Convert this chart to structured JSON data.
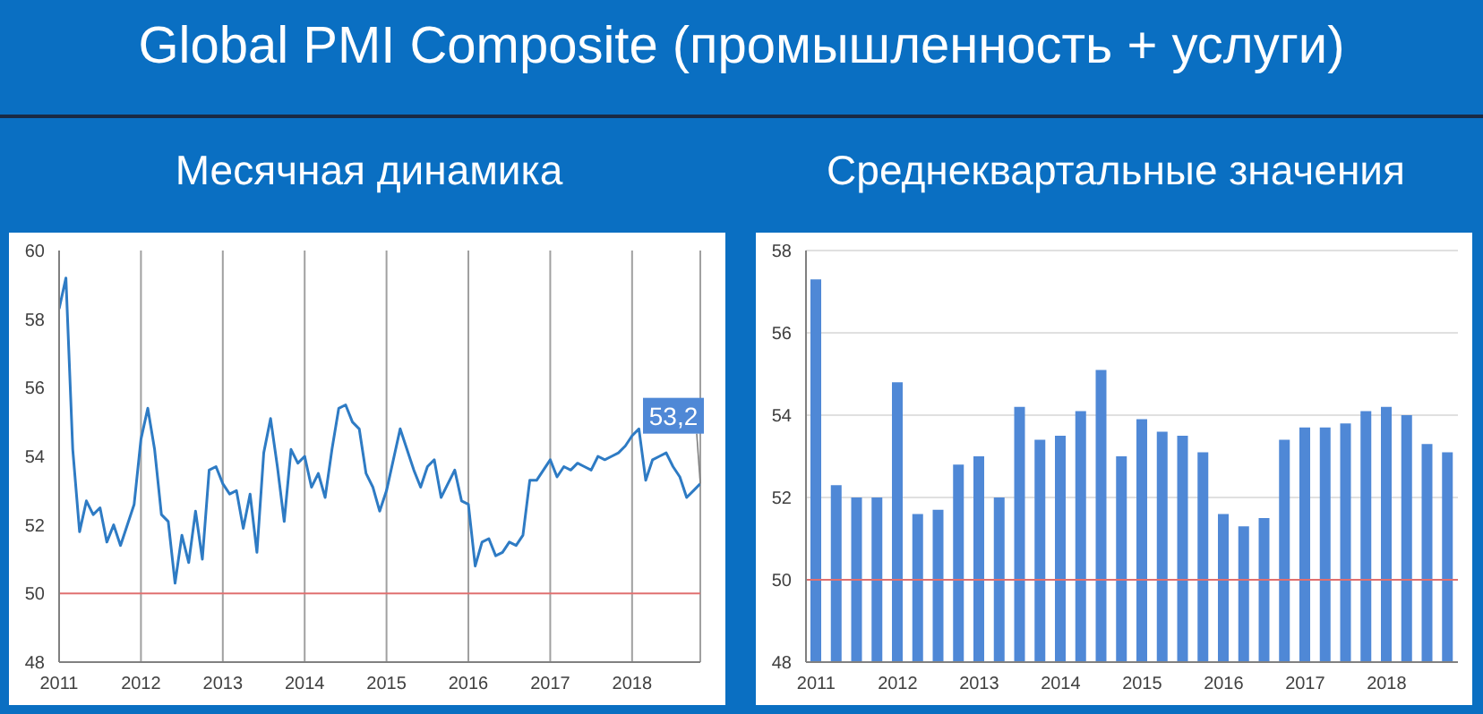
{
  "chart_data": [
    {
      "type": "line",
      "title": "Global PMI Composite (промышленность + услуги)",
      "subtitle": "Месячная динамика",
      "x": [
        "2011-01",
        "2011-02",
        "2011-03",
        "2011-04",
        "2011-05",
        "2011-06",
        "2011-07",
        "2011-08",
        "2011-09",
        "2011-10",
        "2011-11",
        "2011-12",
        "2012-01",
        "2012-02",
        "2012-03",
        "2012-04",
        "2012-05",
        "2012-06",
        "2012-07",
        "2012-08",
        "2012-09",
        "2012-10",
        "2012-11",
        "2012-12",
        "2013-01",
        "2013-02",
        "2013-03",
        "2013-04",
        "2013-05",
        "2013-06",
        "2013-07",
        "2013-08",
        "2013-09",
        "2013-10",
        "2013-11",
        "2013-12",
        "2014-01",
        "2014-02",
        "2014-03",
        "2014-04",
        "2014-05",
        "2014-06",
        "2014-07",
        "2014-08",
        "2014-09",
        "2014-10",
        "2014-11",
        "2014-12",
        "2015-01",
        "2015-02",
        "2015-03",
        "2015-04",
        "2015-05",
        "2015-06",
        "2015-07",
        "2015-08",
        "2015-09",
        "2015-10",
        "2015-11",
        "2015-12",
        "2016-01",
        "2016-02",
        "2016-03",
        "2016-04",
        "2016-05",
        "2016-06",
        "2016-07",
        "2016-08",
        "2016-09",
        "2016-10",
        "2016-11",
        "2016-12",
        "2017-01",
        "2017-02",
        "2017-03",
        "2017-04",
        "2017-05",
        "2017-06",
        "2017-07",
        "2017-08",
        "2017-09",
        "2017-10",
        "2017-11",
        "2017-12",
        "2018-01",
        "2018-02",
        "2018-03",
        "2018-04",
        "2018-05",
        "2018-06",
        "2018-07",
        "2018-08",
        "2018-09",
        "2018-10",
        "2018-11"
      ],
      "series": [
        {
          "color": "#2e7bc4",
          "values": [
            58.3,
            59.2,
            54.2,
            51.8,
            52.7,
            52.3,
            52.5,
            51.5,
            52.0,
            51.4,
            52.0,
            52.6,
            54.5,
            55.4,
            54.2,
            52.3,
            52.1,
            50.3,
            51.7,
            50.9,
            52.4,
            51.0,
            53.6,
            53.7,
            53.2,
            52.9,
            53.0,
            51.9,
            52.9,
            51.2,
            54.1,
            55.1,
            53.7,
            52.1,
            54.2,
            53.8,
            54.0,
            53.1,
            53.5,
            52.8,
            54.2,
            55.4,
            55.5,
            55.0,
            54.8,
            53.5,
            53.1,
            52.4,
            53.0,
            53.9,
            54.8,
            54.2,
            53.6,
            53.1,
            53.7,
            53.9,
            52.8,
            53.2,
            53.6,
            52.7,
            52.6,
            50.8,
            51.5,
            51.6,
            51.1,
            51.2,
            51.5,
            51.4,
            51.7,
            53.3,
            53.3,
            53.6,
            53.9,
            53.4,
            53.7,
            53.6,
            53.8,
            53.7,
            53.6,
            54.0,
            53.9,
            54.0,
            54.1,
            54.3,
            54.6,
            54.8,
            53.3,
            53.9,
            54.0,
            54.1,
            53.7,
            53.4,
            52.8,
            53.0,
            53.2
          ]
        }
      ],
      "xlim": [
        "2011-01",
        "2018-11"
      ],
      "xticks": [
        {
          "value": "2011",
          "label": "2011"
        },
        {
          "value": "2012",
          "label": "2012"
        },
        {
          "value": "2013",
          "label": "2013"
        },
        {
          "value": "2014",
          "label": "2014"
        },
        {
          "value": "2015",
          "label": "2015"
        },
        {
          "value": "2016",
          "label": "2016"
        },
        {
          "value": "2017",
          "label": "2017"
        },
        {
          "value": "2018",
          "label": "2018"
        }
      ],
      "ylim": [
        48,
        60
      ],
      "yticks": [
        48,
        50,
        52,
        54,
        56,
        58,
        60
      ],
      "grid": "x",
      "legend": false,
      "ref_lines": [
        {
          "axis": "y",
          "value": 50,
          "color": "#e07070"
        }
      ],
      "annotations": [
        {
          "text": "53,2",
          "x": "2018-11",
          "y": 53.2
        }
      ]
    },
    {
      "type": "bar",
      "title": "Среднеквартальные значения",
      "categories": [
        "2011",
        null,
        null,
        null,
        "2012",
        null,
        null,
        null,
        "2013",
        null,
        null,
        null,
        "2014",
        null,
        null,
        null,
        "2015",
        null,
        null,
        null,
        "2016",
        null,
        null,
        null,
        "2017",
        null,
        null,
        null,
        "2018",
        null,
        null,
        null
      ],
      "series": [
        {
          "color": "#4f88d6",
          "values": [
            57.3,
            52.3,
            52.0,
            52.0,
            54.8,
            51.6,
            51.7,
            52.8,
            53.0,
            52.0,
            54.2,
            53.4,
            53.5,
            54.1,
            55.1,
            53.0,
            53.9,
            53.6,
            53.5,
            53.1,
            51.6,
            51.3,
            51.5,
            53.4,
            53.7,
            53.7,
            53.8,
            54.1,
            54.2,
            54.0,
            53.3,
            53.1
          ]
        }
      ],
      "ylim": [
        48,
        58
      ],
      "yticks": [
        48,
        50,
        52,
        54,
        56,
        58
      ],
      "grid": "y",
      "legend": false,
      "ref_lines": [
        {
          "axis": "y",
          "value": 50,
          "color": "#e07070"
        }
      ]
    }
  ]
}
